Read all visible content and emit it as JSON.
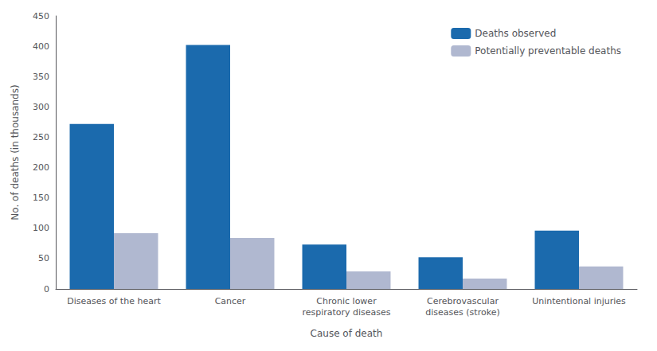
{
  "chart_data": {
    "type": "bar",
    "categories": [
      "Diseases of the heart",
      "Cancer",
      "Chronic lower\nrespiratory diseases",
      "Cerebrovascular\ndiseases (stroke)",
      "Unintentional injuries"
    ],
    "series": [
      {
        "name": "Deaths observed",
        "color": "#1b6aad",
        "values": [
          272,
          402,
          73,
          52,
          96
        ]
      },
      {
        "name": "Potentially preventable deaths",
        "color": "#b0b8d0",
        "values": [
          92,
          84,
          29,
          17,
          37
        ]
      }
    ],
    "xlabel": "Cause of death",
    "ylabel": "No. of deaths (in thousands)",
    "ylim": [
      0,
      450
    ],
    "yticks": [
      0,
      50,
      100,
      150,
      200,
      250,
      300,
      350,
      400,
      450
    ],
    "grid": false,
    "legend": "upper right"
  }
}
